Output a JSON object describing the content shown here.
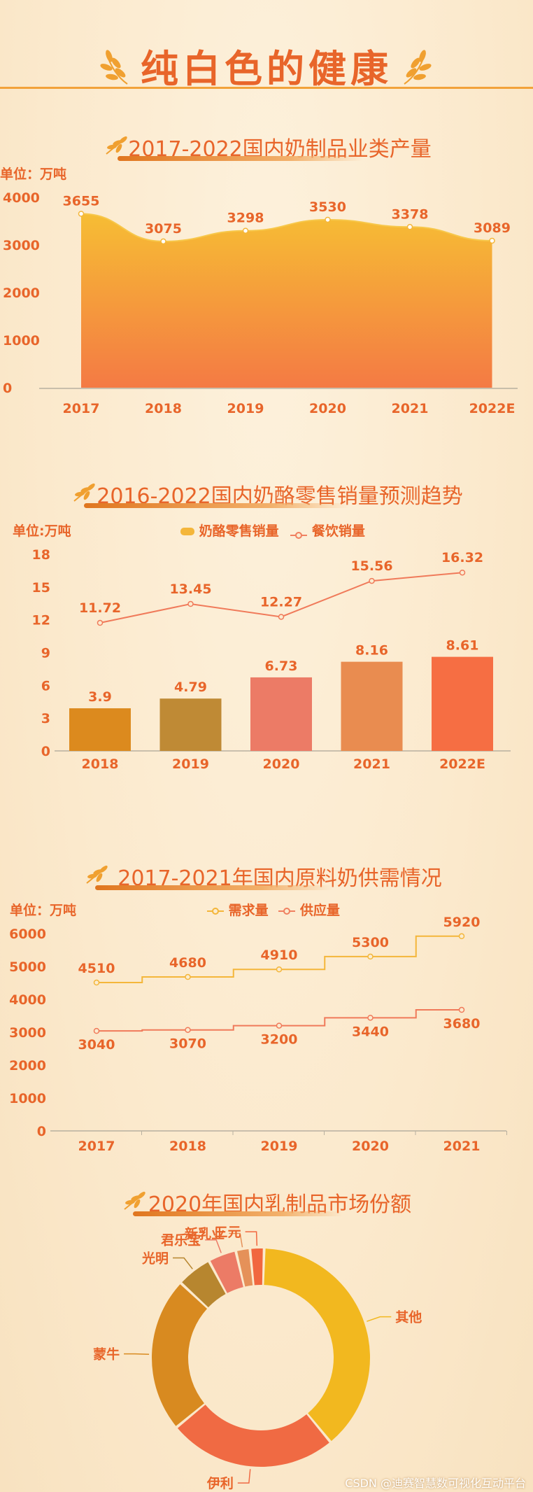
{
  "page": {
    "title": "纯白色的健康",
    "credit": "CSDN @迪赛智慧数可视化互动平台"
  },
  "colors": {
    "accent": "#e8652a",
    "gold": "#f4b63a",
    "orange": "#f47a3e"
  },
  "chart_data": [
    {
      "type": "area",
      "title": "2017-2022国内奶制品业类产量",
      "unit": "单位：万吨",
      "categories": [
        "2017",
        "2018",
        "2019",
        "2020",
        "2021",
        "2022E"
      ],
      "values": [
        3655,
        3075,
        3298,
        3530,
        3378,
        3089
      ],
      "yticks": [
        "0",
        "1000",
        "2000",
        "3000",
        "4000"
      ],
      "ylim": [
        0,
        4000
      ]
    },
    {
      "type": "bar",
      "title": "2016-2022国内奶酪零售销量预测趋势",
      "unit": "单位:万吨",
      "categories": [
        "2018",
        "2019",
        "2020",
        "2021",
        "2022E"
      ],
      "series": [
        {
          "name": "奶酪零售销量",
          "kind": "bar",
          "values": [
            3.9,
            4.79,
            6.73,
            8.16,
            8.61
          ],
          "colors": [
            "#dc8a1e",
            "#bf8a35",
            "#ec7b66",
            "#e98c50",
            "#f66e43"
          ]
        },
        {
          "name": "餐饮销量",
          "kind": "line",
          "values": [
            11.72,
            13.45,
            12.27,
            15.56,
            16.32
          ]
        }
      ],
      "yticks": [
        "0",
        "3",
        "6",
        "9",
        "12",
        "15",
        "18"
      ],
      "ylim": [
        0,
        18
      ]
    },
    {
      "type": "line",
      "title": "2017-2021年国内原料奶供需情况",
      "unit": "单位：万吨",
      "categories": [
        "2017",
        "2018",
        "2019",
        "2020",
        "2021"
      ],
      "series": [
        {
          "name": "需求量",
          "values": [
            4510,
            4680,
            4910,
            5300,
            5920
          ]
        },
        {
          "name": "供应量",
          "values": [
            3040,
            3070,
            3200,
            3440,
            3680
          ]
        }
      ],
      "yticks": [
        "0",
        "1000",
        "2000",
        "3000",
        "4000",
        "5000",
        "6000"
      ],
      "ylim": [
        0,
        6000
      ]
    },
    {
      "type": "pie",
      "title": "2020年国内乳制品市场份额",
      "slices": [
        {
          "label": "其他",
          "value": 37,
          "color": "#f2b81f"
        },
        {
          "label": "伊利",
          "value": 24,
          "color": "#f06a43"
        },
        {
          "label": "蒙牛",
          "value": 22,
          "color": "#d88a20"
        },
        {
          "label": "光明",
          "value": 5,
          "color": "#b7862f"
        },
        {
          "label": "君乐宝",
          "value": 4,
          "color": "#ec7b66"
        },
        {
          "label": "新乳业",
          "value": 2,
          "color": "#e59159"
        },
        {
          "label": "三元",
          "value": 2,
          "color": "#f1673f"
        }
      ]
    }
  ]
}
